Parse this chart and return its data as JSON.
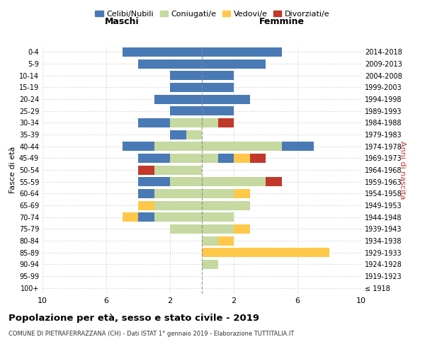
{
  "age_groups": [
    "100+",
    "95-99",
    "90-94",
    "85-89",
    "80-84",
    "75-79",
    "70-74",
    "65-69",
    "60-64",
    "55-59",
    "50-54",
    "45-49",
    "40-44",
    "35-39",
    "30-34",
    "25-29",
    "20-24",
    "15-19",
    "10-14",
    "5-9",
    "0-4"
  ],
  "birth_years": [
    "≤ 1918",
    "1919-1923",
    "1924-1928",
    "1929-1933",
    "1934-1938",
    "1939-1943",
    "1944-1948",
    "1949-1953",
    "1954-1958",
    "1959-1963",
    "1964-1968",
    "1969-1973",
    "1974-1978",
    "1979-1983",
    "1984-1988",
    "1989-1993",
    "1994-1998",
    "1999-2003",
    "2004-2008",
    "2009-2013",
    "2014-2018"
  ],
  "maschi": {
    "celibi": [
      0,
      0,
      0,
      0,
      0,
      0,
      1,
      0,
      1,
      2,
      0,
      2,
      2,
      1,
      2,
      2,
      3,
      2,
      2,
      4,
      5
    ],
    "coniugati": [
      0,
      0,
      0,
      0,
      0,
      2,
      3,
      3,
      3,
      2,
      3,
      2,
      3,
      1,
      2,
      0,
      0,
      0,
      0,
      0,
      0
    ],
    "vedovi": [
      0,
      0,
      0,
      0,
      0,
      0,
      1,
      1,
      0,
      0,
      0,
      0,
      0,
      0,
      0,
      0,
      0,
      0,
      0,
      0,
      0
    ],
    "divorziati": [
      0,
      0,
      0,
      0,
      0,
      0,
      0,
      0,
      0,
      0,
      1,
      0,
      0,
      0,
      0,
      0,
      0,
      0,
      0,
      0,
      0
    ]
  },
  "femmine": {
    "nubili": [
      0,
      0,
      0,
      0,
      0,
      0,
      0,
      0,
      0,
      0,
      0,
      1,
      2,
      0,
      0,
      2,
      3,
      2,
      2,
      4,
      5
    ],
    "coniugate": [
      0,
      0,
      1,
      0,
      1,
      2,
      2,
      3,
      2,
      4,
      0,
      1,
      5,
      0,
      1,
      0,
      0,
      0,
      0,
      0,
      0
    ],
    "vedove": [
      0,
      0,
      0,
      8,
      1,
      1,
      0,
      0,
      1,
      0,
      0,
      1,
      0,
      0,
      0,
      0,
      0,
      0,
      0,
      0,
      0
    ],
    "divorziate": [
      0,
      0,
      0,
      0,
      0,
      0,
      0,
      0,
      0,
      1,
      0,
      1,
      0,
      0,
      1,
      0,
      0,
      0,
      0,
      0,
      0
    ]
  },
  "colors": {
    "celibi_nubili": "#4a7ab5",
    "coniugati": "#c5d9a0",
    "vedovi": "#ffc84a",
    "divorziati": "#c0392b"
  },
  "title_bold": "Popolazione per età, sesso e stato civile - 2019",
  "subtitle": "COMUNE DI PIETRAFERRAZZANA (CH) - Dati ISTAT 1° gennaio 2019 - Elaborazione TUTTITALIA.IT",
  "xlabel_left": "Maschi",
  "xlabel_right": "Femmine",
  "ylabel_left": "Fasce di età",
  "ylabel_right": "Anni di nascita",
  "xlim": 10,
  "bg_color": "#ffffff",
  "grid_color": "#cccccc"
}
